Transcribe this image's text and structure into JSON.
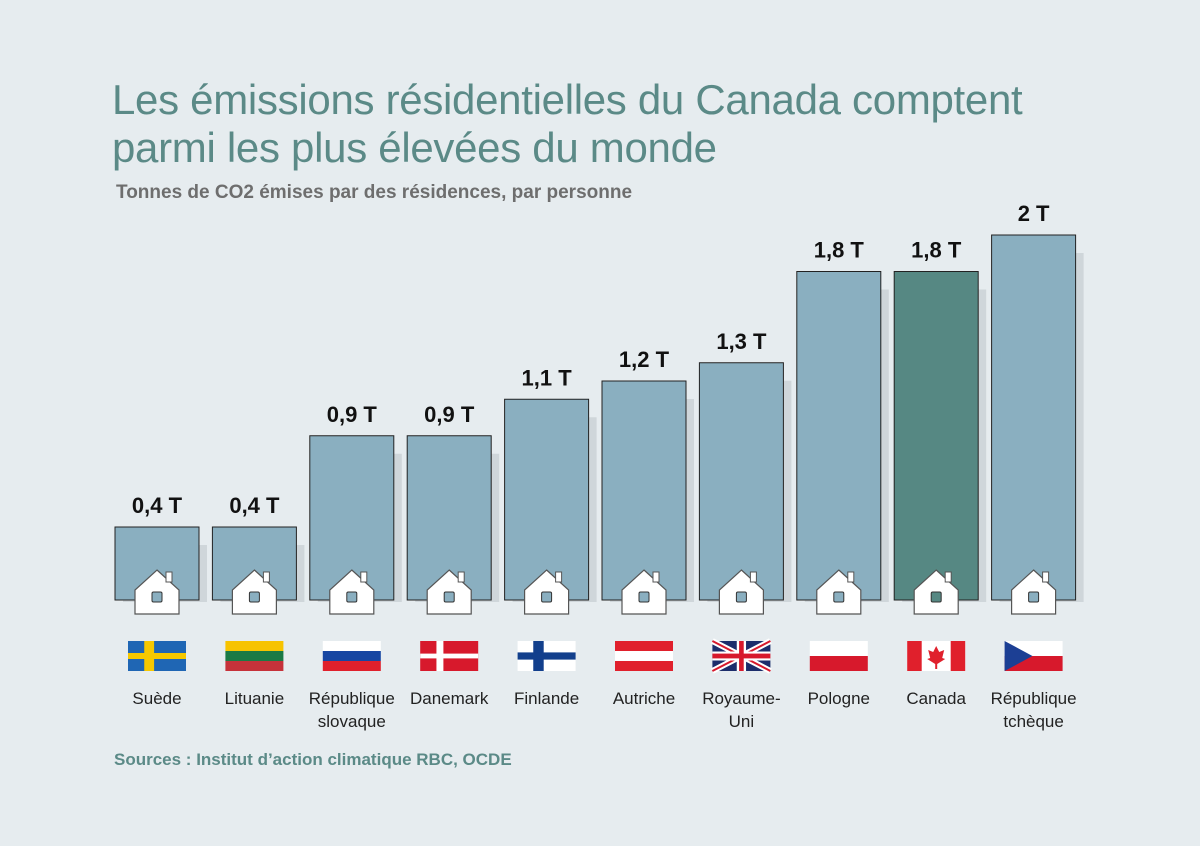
{
  "header": {
    "title": "Les émissions résidentielles du Canada comptent parmi les plus élevées du monde",
    "subtitle": "Tonnes de CO2 émises par des résidences, par personne",
    "source": "Sources : Institut d’action climatique RBC, OCDE"
  },
  "colors": {
    "bar": "#8aafc0",
    "highlight": "#568883",
    "shadow": "#cfd6da",
    "title": "#5b8a87"
  },
  "chart_data": {
    "type": "bar",
    "categories": [
      "Suède",
      "Lituanie",
      "République slovaque",
      "Danemark",
      "Finlande",
      "Autriche",
      "Royaume-Uni",
      "Pologne",
      "Canada",
      "République tchèque"
    ],
    "category_lines": [
      [
        "Suède"
      ],
      [
        "Lituanie"
      ],
      [
        "République",
        "slovaque"
      ],
      [
        "Danemark"
      ],
      [
        "Finlande"
      ],
      [
        "Autriche"
      ],
      [
        "Royaume-",
        "Uni"
      ],
      [
        "Pologne"
      ],
      [
        "Canada"
      ],
      [
        "République",
        "tchèque"
      ]
    ],
    "values": [
      0.4,
      0.4,
      0.9,
      0.9,
      1.1,
      1.2,
      1.3,
      1.8,
      1.8,
      2.0
    ],
    "value_labels": [
      "0,4 T",
      "0,4 T",
      "0,9 T",
      "0,9 T",
      "1,1 T",
      "1,2 T",
      "1,3 T",
      "1,8 T",
      "1,8 T",
      "2 T"
    ],
    "flags": [
      "flag-sweden",
      "flag-lithuania",
      "flag-slovakia",
      "flag-denmark",
      "flag-finland",
      "flag-austria",
      "flag-uk",
      "flag-poland",
      "flag-canada",
      "flag-czech-republic"
    ],
    "highlight": "Canada",
    "ylim": [
      0,
      2.0
    ],
    "grid": false,
    "legend": "none"
  }
}
